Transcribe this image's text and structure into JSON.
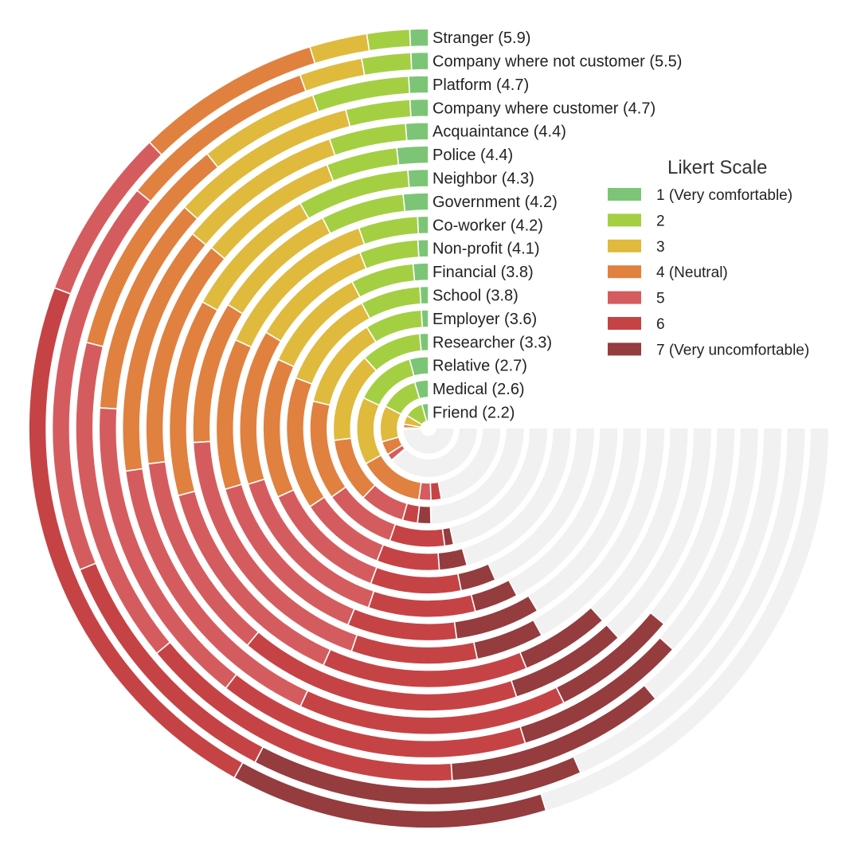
{
  "chart_data": {
    "type": "radial-stacked-bar",
    "legend": {
      "title": "Likert Scale",
      "placement": "right",
      "items": [
        {
          "label": "1 (Very comfortable)",
          "color": "#7cc576"
        },
        {
          "label": "2",
          "color": "#a4cf43"
        },
        {
          "label": "3",
          "color": "#dfba3d"
        },
        {
          "label": "4 (Neutral)",
          "color": "#e0813f"
        },
        {
          "label": "5",
          "color": "#d55c5e"
        },
        {
          "label": "6",
          "color": "#c64345"
        },
        {
          "label": "7 (Very uncomfortable)",
          "color": "#943c3e"
        }
      ]
    },
    "track_color": "#f1f1f1",
    "max_total": 100,
    "rings": [
      {
        "label": "Stranger (5.9)",
        "values": [
          1.0,
          2.3,
          3.1,
          10.0,
          9.3,
          30.2,
          17.1
        ]
      },
      {
        "label": "Company where not customer (5.5)",
        "values": [
          1.0,
          2.8,
          3.6,
          11.4,
          22.7,
          15.0,
          19.0
        ]
      },
      {
        "label": "Platform (4.7)",
        "values": [
          1.2,
          5.9,
          7.3,
          13.7,
          19.9,
          20.1,
          13.4
        ]
      },
      {
        "label": "Company where customer (4.7)",
        "values": [
          1.2,
          4.2,
          12.3,
          14.3,
          20.6,
          20.4,
          11.4
        ]
      },
      {
        "label": "Acquaintance (4.4)",
        "values": [
          1.6,
          5.4,
          11.7,
          17.6,
          21.2,
          18.9,
          8.9
        ]
      },
      {
        "label": "Police (4.4)",
        "values": [
          2.4,
          5.4,
          10.8,
          17.4,
          15.9,
          21.5,
          8.9
        ]
      },
      {
        "label": "Neighbor (4.3)",
        "values": [
          1.7,
          9.3,
          11.5,
          16.4,
          18.9,
          17.1,
          7.4
        ]
      },
      {
        "label": "Government (4.2)",
        "values": [
          2.3,
          7.6,
          11.7,
          13.0,
          25.0,
          11.5,
          6.2
        ]
      },
      {
        "label": "Co-worker (4.2)",
        "values": [
          1.1,
          6.0,
          17.1,
          15.3,
          18.9,
          11.1,
          8.6
        ]
      },
      {
        "label": "Non-profit (4.1)",
        "values": [
          1.2,
          6.7,
          14.1,
          17.7,
          20.1,
          12.2,
          5.0
        ]
      },
      {
        "label": "Financial (3.8)",
        "values": [
          2.0,
          8.2,
          14.0,
          18.2,
          16.7,
          11.8,
          4.6
        ]
      },
      {
        "label": "School (3.8)",
        "values": [
          1.3,
          9.1,
          15.2,
          20.1,
          13.1,
          9.5,
          4.2
        ]
      },
      {
        "label": "Employer (3.6)",
        "values": [
          1.3,
          10.3,
          16.8,
          18.0,
          13.2,
          10.0,
          1.6
        ]
      },
      {
        "label": "Researcher (3.3)",
        "values": [
          2.0,
          13.6,
          20.4,
          14.6,
          10.2,
          3.4,
          3.0
        ]
      },
      {
        "label": "Relative (2.7)",
        "values": [
          5.7,
          18.3,
          20.2,
          19.6,
          3.6,
          3.1,
          0
        ]
      },
      {
        "label": "Medical (2.6)",
        "values": [
          6.2,
          17.0,
          16.1,
          6.1,
          3.0,
          0.4,
          0
        ]
      },
      {
        "label": "Friend (2.2)",
        "values": [
          5.7,
          16.2,
          7.8,
          3.1,
          0.9,
          0.4,
          0
        ]
      }
    ]
  }
}
